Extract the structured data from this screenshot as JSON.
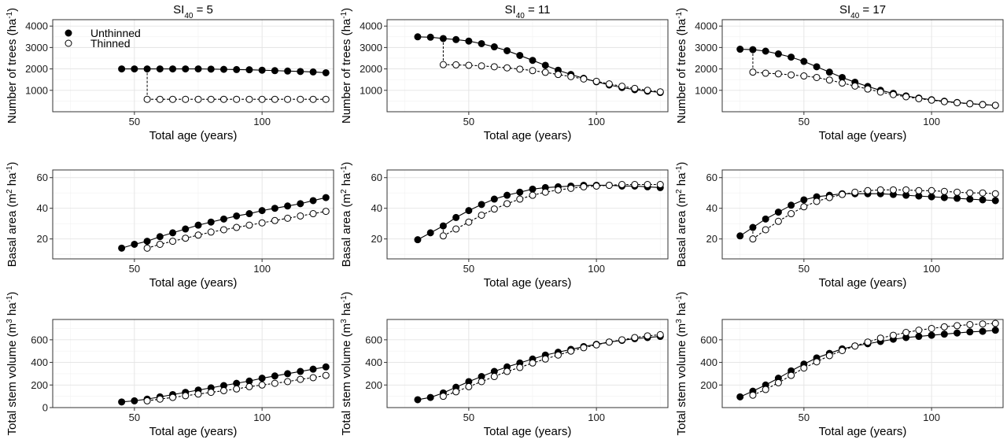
{
  "legend": {
    "unthinned": "Unthinned",
    "thinned": "Thinned"
  },
  "colors": {
    "unthinned": "#000000",
    "thinned": "#ffffff",
    "line": "#000000"
  },
  "chart_data": [
    {
      "type": "line",
      "column": 0,
      "row": 0,
      "column_title": {
        "base": "SI",
        "sub": "40",
        "suffix": " = 5"
      },
      "xlabel": "Total age (years)",
      "ylabel": "Number of trees (ha<sup>-1</sup>)",
      "xlim": [
        18,
        128
      ],
      "xticks": [
        50,
        100
      ],
      "ylim": [
        0,
        4300
      ],
      "yticks": [
        1000,
        2000,
        3000,
        4000
      ],
      "series": [
        {
          "name": "Unthinned",
          "x": [
            45,
            50,
            55,
            60,
            65,
            70,
            75,
            80,
            85,
            90,
            95,
            100,
            105,
            110,
            115,
            120,
            125
          ],
          "y": [
            2000,
            2000,
            2000,
            2000,
            2000,
            2000,
            2000,
            1990,
            1980,
            1970,
            1960,
            1940,
            1920,
            1900,
            1880,
            1860,
            1820
          ]
        },
        {
          "name": "Thinned",
          "x": [
            55,
            60,
            65,
            70,
            75,
            80,
            85,
            90,
            95,
            100,
            105,
            110,
            115,
            120,
            125
          ],
          "y": [
            580,
            580,
            580,
            580,
            580,
            580,
            580,
            580,
            580,
            580,
            580,
            580,
            580,
            580,
            580
          ]
        }
      ],
      "thinning": {
        "x": 55,
        "from": 2000,
        "to": 580
      }
    },
    {
      "type": "line",
      "column": 1,
      "row": 0,
      "column_title": {
        "base": "SI",
        "sub": "40",
        "suffix": " = 11"
      },
      "xlabel": "Total age (years)",
      "ylabel": "Number of trees (ha<sup>-1</sup>)",
      "xlim": [
        18,
        128
      ],
      "xticks": [
        50,
        100
      ],
      "ylim": [
        0,
        4300
      ],
      "yticks": [
        1000,
        2000,
        3000,
        4000
      ],
      "series": [
        {
          "name": "Unthinned",
          "x": [
            30,
            35,
            40,
            45,
            50,
            55,
            60,
            65,
            70,
            75,
            80,
            85,
            90,
            95,
            100,
            105,
            110,
            115,
            120,
            125
          ],
          "y": [
            3500,
            3480,
            3420,
            3370,
            3300,
            3180,
            3030,
            2850,
            2630,
            2400,
            2170,
            1940,
            1740,
            1560,
            1400,
            1250,
            1130,
            1030,
            960,
            900
          ]
        },
        {
          "name": "Thinned",
          "x": [
            40,
            45,
            50,
            55,
            60,
            65,
            70,
            75,
            80,
            85,
            90,
            95,
            100,
            105,
            110,
            115,
            120,
            125
          ],
          "y": [
            2200,
            2190,
            2170,
            2140,
            2100,
            2050,
            1990,
            1920,
            1840,
            1740,
            1640,
            1530,
            1420,
            1300,
            1190,
            1090,
            1000,
            930
          ]
        }
      ],
      "thinning": {
        "x": 40,
        "from": 3420,
        "to": 2200
      }
    },
    {
      "type": "line",
      "column": 2,
      "row": 0,
      "column_title": {
        "base": "SI",
        "sub": "40",
        "suffix": " = 17"
      },
      "xlabel": "Total age (years)",
      "ylabel": "Number of trees (ha<sup>-1</sup>)",
      "xlim": [
        18,
        128
      ],
      "xticks": [
        50,
        100
      ],
      "ylim": [
        0,
        4300
      ],
      "yticks": [
        1000,
        2000,
        3000,
        4000
      ],
      "series": [
        {
          "name": "Unthinned",
          "x": [
            25,
            30,
            35,
            40,
            45,
            50,
            55,
            60,
            65,
            70,
            75,
            80,
            85,
            90,
            95,
            100,
            105,
            110,
            115,
            120,
            125
          ],
          "y": [
            2920,
            2900,
            2830,
            2700,
            2550,
            2350,
            2100,
            1850,
            1600,
            1380,
            1180,
            1000,
            860,
            740,
            640,
            560,
            490,
            430,
            380,
            340,
            300
          ]
        },
        {
          "name": "Thinned",
          "x": [
            30,
            35,
            40,
            45,
            50,
            55,
            60,
            65,
            70,
            75,
            80,
            85,
            90,
            95,
            100,
            105,
            110,
            115,
            120,
            125
          ],
          "y": [
            1850,
            1800,
            1770,
            1720,
            1670,
            1600,
            1480,
            1340,
            1200,
            1060,
            920,
            800,
            700,
            610,
            540,
            470,
            420,
            370,
            330,
            300
          ]
        }
      ],
      "thinning": {
        "x": 30,
        "from": 2900,
        "to": 1850
      }
    },
    {
      "type": "line",
      "column": 0,
      "row": 1,
      "xlabel": "Total age (years)",
      "ylabel": "Basal area (m<sup>2</sup> ha<sup>-1</sup>)",
      "xlim": [
        18,
        128
      ],
      "xticks": [
        50,
        100
      ],
      "ylim": [
        7,
        65
      ],
      "yticks": [
        20,
        40,
        60
      ],
      "series": [
        {
          "name": "Unthinned",
          "x": [
            45,
            50,
            55,
            60,
            65,
            70,
            75,
            80,
            85,
            90,
            95,
            100,
            105,
            110,
            115,
            120,
            125
          ],
          "y": [
            14,
            16.5,
            18.5,
            21.5,
            24,
            26.5,
            29,
            31,
            33,
            35,
            36.5,
            38.5,
            40,
            41.5,
            43,
            45,
            47
          ]
        },
        {
          "name": "Thinned",
          "x": [
            55,
            60,
            65,
            70,
            75,
            80,
            85,
            90,
            95,
            100,
            105,
            110,
            115,
            120,
            125
          ],
          "y": [
            14,
            16.5,
            18.5,
            20.5,
            22.5,
            24.5,
            26,
            27.5,
            29,
            30.5,
            32,
            33.5,
            35,
            36.5,
            38
          ]
        }
      ],
      "thinning": {
        "x": 55,
        "from": 18.5,
        "to": 14
      }
    },
    {
      "type": "line",
      "column": 1,
      "row": 1,
      "xlabel": "Total age (years)",
      "ylabel": "Basal area (m<sup>2</sup> ha<sup>-1</sup>)",
      "xlim": [
        18,
        128
      ],
      "xticks": [
        50,
        100
      ],
      "ylim": [
        7,
        65
      ],
      "yticks": [
        20,
        40,
        60
      ],
      "series": [
        {
          "name": "Unthinned",
          "x": [
            30,
            35,
            40,
            45,
            50,
            55,
            60,
            65,
            70,
            75,
            80,
            85,
            90,
            95,
            100,
            105,
            110,
            115,
            120,
            125
          ],
          "y": [
            19.5,
            24,
            28.5,
            34,
            38.5,
            42.5,
            46,
            48.5,
            50.5,
            52.5,
            53.5,
            54,
            54.5,
            55,
            55,
            55,
            54.5,
            54.5,
            54,
            53.5
          ]
        },
        {
          "name": "Thinned",
          "x": [
            40,
            45,
            50,
            55,
            60,
            65,
            70,
            75,
            80,
            85,
            90,
            95,
            100,
            105,
            110,
            115,
            120,
            125
          ],
          "y": [
            22,
            26.5,
            31,
            35.5,
            39.5,
            43,
            46,
            48.5,
            50.5,
            52,
            53,
            54,
            54.5,
            55,
            55.5,
            55.5,
            55.5,
            55.5
          ]
        }
      ],
      "thinning": {
        "x": 40,
        "from": 28.5,
        "to": 22
      }
    },
    {
      "type": "line",
      "column": 2,
      "row": 1,
      "xlabel": "Total age (years)",
      "ylabel": "Basal area (m<sup>2</sup> ha<sup>-1</sup>)",
      "xlim": [
        18,
        128
      ],
      "xticks": [
        50,
        100
      ],
      "ylim": [
        7,
        65
      ],
      "yticks": [
        20,
        40,
        60
      ],
      "series": [
        {
          "name": "Unthinned",
          "x": [
            25,
            30,
            35,
            40,
            45,
            50,
            55,
            60,
            65,
            70,
            75,
            80,
            85,
            90,
            95,
            100,
            105,
            110,
            115,
            120,
            125
          ],
          "y": [
            22,
            27.5,
            33,
            37.5,
            42,
            45.5,
            47.5,
            48.5,
            49.5,
            49.5,
            49.5,
            49.5,
            49,
            48.5,
            48,
            47.5,
            47,
            46.5,
            46,
            45.5,
            45
          ]
        },
        {
          "name": "Thinned",
          "x": [
            30,
            35,
            40,
            45,
            50,
            55,
            60,
            65,
            70,
            75,
            80,
            85,
            90,
            95,
            100,
            105,
            110,
            115,
            120,
            125
          ],
          "y": [
            20,
            26,
            31.5,
            36.5,
            41,
            44.5,
            47,
            49,
            50.5,
            51.5,
            52,
            52,
            52,
            51.5,
            51.5,
            51,
            50.5,
            50,
            50,
            49.5
          ]
        }
      ],
      "thinning": {
        "x": 30,
        "from": 27.5,
        "to": 20
      }
    },
    {
      "type": "line",
      "column": 0,
      "row": 2,
      "xlabel": "Total age (years)",
      "ylabel": "Total stem volume (m<sup>3</sup> ha<sup>-1</sup>)",
      "xlim": [
        18,
        128
      ],
      "xticks": [
        50,
        100
      ],
      "ylim": [
        0,
        780
      ],
      "yticks": [
        0,
        200,
        400,
        600
      ],
      "series": [
        {
          "name": "Unthinned",
          "x": [
            45,
            50,
            55,
            60,
            65,
            70,
            75,
            80,
            85,
            90,
            95,
            100,
            105,
            110,
            115,
            120,
            125
          ],
          "y": [
            50,
            60,
            75,
            95,
            115,
            135,
            155,
            175,
            195,
            215,
            235,
            260,
            280,
            300,
            320,
            340,
            360
          ]
        },
        {
          "name": "Thinned",
          "x": [
            55,
            60,
            65,
            70,
            75,
            80,
            85,
            90,
            95,
            100,
            105,
            110,
            115,
            120,
            125
          ],
          "y": [
            60,
            75,
            90,
            105,
            120,
            135,
            150,
            165,
            185,
            200,
            215,
            230,
            250,
            265,
            285
          ]
        }
      ],
      "thinning": {
        "x": 55,
        "from": 75,
        "to": 60
      }
    },
    {
      "type": "line",
      "column": 1,
      "row": 2,
      "xlabel": "Total age (years)",
      "ylabel": "Total stem volume (m<sup>3</sup> ha<sup>-1</sup>)",
      "xlim": [
        18,
        128
      ],
      "xticks": [
        50,
        100
      ],
      "ylim": [
        0,
        780
      ],
      "yticks": [
        200,
        400,
        600
      ],
      "series": [
        {
          "name": "Unthinned",
          "x": [
            30,
            35,
            40,
            45,
            50,
            55,
            60,
            65,
            70,
            75,
            80,
            85,
            90,
            95,
            100,
            105,
            110,
            115,
            120,
            125
          ],
          "y": [
            70,
            90,
            130,
            180,
            230,
            275,
            320,
            360,
            395,
            430,
            465,
            490,
            515,
            540,
            560,
            580,
            595,
            610,
            620,
            630
          ]
        },
        {
          "name": "Thinned",
          "x": [
            40,
            45,
            50,
            55,
            60,
            65,
            70,
            75,
            80,
            85,
            90,
            95,
            100,
            105,
            110,
            115,
            120,
            125
          ],
          "y": [
            100,
            140,
            185,
            230,
            275,
            320,
            355,
            395,
            430,
            465,
            500,
            530,
            555,
            580,
            600,
            620,
            635,
            645
          ]
        }
      ],
      "thinning": {
        "x": 40,
        "from": 130,
        "to": 100
      }
    },
    {
      "type": "line",
      "column": 2,
      "row": 2,
      "xlabel": "Total age (years)",
      "ylabel": "Total stem volume (m<sup>3</sup> ha<sup>-1</sup>)",
      "xlim": [
        18,
        128
      ],
      "xticks": [
        50,
        100
      ],
      "ylim": [
        0,
        780
      ],
      "yticks": [
        200,
        400,
        600
      ],
      "series": [
        {
          "name": "Unthinned",
          "x": [
            25,
            30,
            35,
            40,
            45,
            50,
            55,
            60,
            65,
            70,
            75,
            80,
            85,
            90,
            95,
            100,
            105,
            110,
            115,
            120,
            125
          ],
          "y": [
            95,
            145,
            200,
            260,
            325,
            385,
            440,
            480,
            520,
            545,
            565,
            585,
            605,
            620,
            630,
            640,
            650,
            660,
            670,
            675,
            685
          ]
        },
        {
          "name": "Thinned",
          "x": [
            30,
            35,
            40,
            45,
            50,
            55,
            60,
            65,
            70,
            75,
            80,
            85,
            90,
            95,
            100,
            105,
            110,
            115,
            120,
            125
          ],
          "y": [
            110,
            160,
            220,
            285,
            350,
            405,
            460,
            505,
            545,
            580,
            615,
            640,
            665,
            685,
            700,
            715,
            725,
            735,
            740,
            745
          ]
        }
      ],
      "thinning": {
        "x": 30,
        "from": 145,
        "to": 110
      }
    }
  ]
}
